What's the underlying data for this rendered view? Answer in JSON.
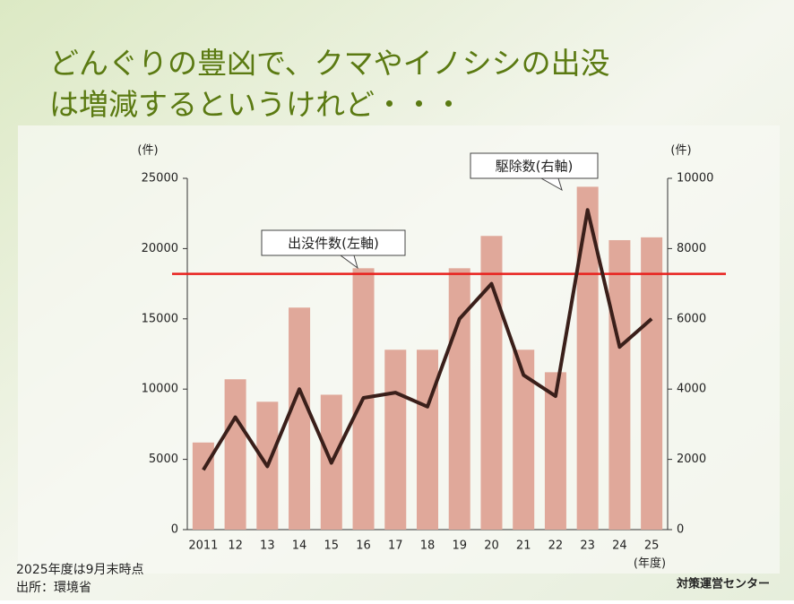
{
  "chart_data": {
    "type": "bar_line",
    "title": [
      "どんぐりの豊凶で、クマやイノシシの出没",
      "は増減するというけれど・・・"
    ],
    "categories": [
      "2011",
      "12",
      "13",
      "14",
      "15",
      "16",
      "17",
      "18",
      "19",
      "20",
      "21",
      "22",
      "23",
      "24",
      "25"
    ],
    "x_label": "(年度)",
    "y_unit": "(件)",
    "y2_unit": "(件)",
    "series": [
      {
        "name": "出没件数(左軸)",
        "type": "bar",
        "color": "#e0a89a",
        "values": [
          6200,
          10700,
          9100,
          15800,
          9600,
          18600,
          12800,
          12800,
          18600,
          20900,
          12800,
          11200,
          24400,
          20600,
          20800
        ]
      },
      {
        "name": "駆除数(右軸)",
        "type": "line",
        "axis": "y2",
        "color": "#3a1f1a",
        "values": [
          1700,
          3200,
          1800,
          4000,
          1900,
          3750,
          3900,
          3500,
          6000,
          7000,
          4400,
          3800,
          9100,
          5200,
          6000
        ]
      }
    ],
    "reference_line": {
      "value": 18200,
      "color": "#e8201c"
    },
    "ylim": [
      0,
      25000
    ],
    "yticks": [
      0,
      5000,
      10000,
      15000,
      20000,
      25000
    ],
    "y2lim": [
      0,
      10000
    ],
    "y2ticks": [
      0,
      2000,
      4000,
      6000,
      8000,
      10000
    ],
    "notes": [
      "2025年度は9月末時点",
      "出所：環境省"
    ],
    "logo": "対策運営センター"
  }
}
